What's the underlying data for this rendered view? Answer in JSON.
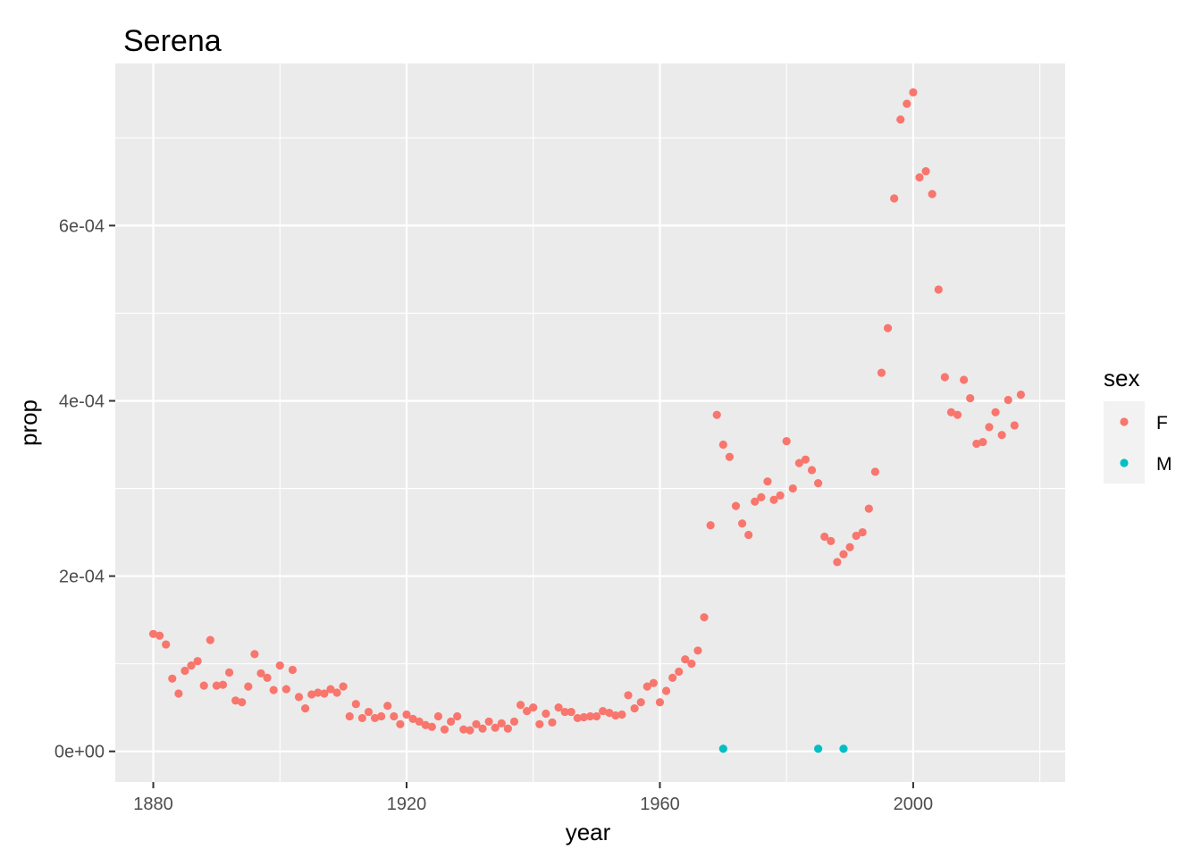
{
  "chart_data": {
    "type": "scatter",
    "title": "Serena",
    "xlabel": "year",
    "ylabel": "prop",
    "xlim": [
      1874,
      2024
    ],
    "ylim": [
      -3.5e-05,
      0.000785
    ],
    "x_ticks": [
      1880,
      1920,
      1960,
      2000
    ],
    "x_tick_labels": [
      "1880",
      "1920",
      "1960",
      "2000"
    ],
    "y_ticks": [
      0,
      0.0002,
      0.0004,
      0.0006
    ],
    "y_tick_labels": [
      "0e+00",
      "2e-04",
      "4e-04",
      "6e-04"
    ],
    "grid": true,
    "legend": {
      "title": "sex",
      "position": "right"
    },
    "series": [
      {
        "name": "F",
        "color": "#F8766D",
        "points": [
          [
            1880,
            0.000134
          ],
          [
            1881,
            0.000132
          ],
          [
            1882,
            0.000122
          ],
          [
            1883,
            8.3e-05
          ],
          [
            1884,
            6.6e-05
          ],
          [
            1885,
            9.2e-05
          ],
          [
            1886,
            9.8e-05
          ],
          [
            1887,
            0.000103
          ],
          [
            1888,
            7.5e-05
          ],
          [
            1889,
            0.000127
          ],
          [
            1890,
            7.5e-05
          ],
          [
            1891,
            7.6e-05
          ],
          [
            1892,
            9e-05
          ],
          [
            1893,
            5.8e-05
          ],
          [
            1894,
            5.6e-05
          ],
          [
            1895,
            7.4e-05
          ],
          [
            1896,
            0.000111
          ],
          [
            1897,
            8.9e-05
          ],
          [
            1898,
            8.4e-05
          ],
          [
            1899,
            7e-05
          ],
          [
            1900,
            9.8e-05
          ],
          [
            1901,
            7.1e-05
          ],
          [
            1902,
            9.3e-05
          ],
          [
            1903,
            6.2e-05
          ],
          [
            1904,
            4.9e-05
          ],
          [
            1905,
            6.5e-05
          ],
          [
            1906,
            6.7e-05
          ],
          [
            1907,
            6.6e-05
          ],
          [
            1908,
            7.1e-05
          ],
          [
            1909,
            6.7e-05
          ],
          [
            1910,
            7.4e-05
          ],
          [
            1911,
            4e-05
          ],
          [
            1912,
            5.4e-05
          ],
          [
            1913,
            3.8e-05
          ],
          [
            1914,
            4.5e-05
          ],
          [
            1915,
            3.8e-05
          ],
          [
            1916,
            4e-05
          ],
          [
            1917,
            5.2e-05
          ],
          [
            1918,
            4e-05
          ],
          [
            1919,
            3.1e-05
          ],
          [
            1920,
            4.2e-05
          ],
          [
            1921,
            3.7e-05
          ],
          [
            1922,
            3.4e-05
          ],
          [
            1923,
            3e-05
          ],
          [
            1924,
            2.8e-05
          ],
          [
            1925,
            4e-05
          ],
          [
            1926,
            2.5e-05
          ],
          [
            1927,
            3.4e-05
          ],
          [
            1928,
            4e-05
          ],
          [
            1929,
            2.5e-05
          ],
          [
            1930,
            2.4e-05
          ],
          [
            1931,
            3.1e-05
          ],
          [
            1932,
            2.6e-05
          ],
          [
            1933,
            3.4e-05
          ],
          [
            1934,
            2.7e-05
          ],
          [
            1935,
            3.2e-05
          ],
          [
            1936,
            2.6e-05
          ],
          [
            1937,
            3.4e-05
          ],
          [
            1938,
            5.3e-05
          ],
          [
            1939,
            4.6e-05
          ],
          [
            1940,
            5e-05
          ],
          [
            1941,
            3.1e-05
          ],
          [
            1942,
            4.3e-05
          ],
          [
            1943,
            3.3e-05
          ],
          [
            1944,
            5e-05
          ],
          [
            1945,
            4.5e-05
          ],
          [
            1946,
            4.5e-05
          ],
          [
            1947,
            3.8e-05
          ],
          [
            1948,
            3.9e-05
          ],
          [
            1949,
            4e-05
          ],
          [
            1950,
            4e-05
          ],
          [
            1951,
            4.6e-05
          ],
          [
            1952,
            4.4e-05
          ],
          [
            1953,
            4.1e-05
          ],
          [
            1954,
            4.2e-05
          ],
          [
            1955,
            6.4e-05
          ],
          [
            1956,
            4.9e-05
          ],
          [
            1957,
            5.6e-05
          ],
          [
            1958,
            7.4e-05
          ],
          [
            1959,
            7.8e-05
          ],
          [
            1960,
            5.6e-05
          ],
          [
            1961,
            6.9e-05
          ],
          [
            1962,
            8.4e-05
          ],
          [
            1963,
            9.1e-05
          ],
          [
            1964,
            0.000105
          ],
          [
            1965,
            0.0001
          ],
          [
            1966,
            0.000115
          ],
          [
            1967,
            0.000153
          ],
          [
            1968,
            0.000258
          ],
          [
            1969,
            0.000384
          ],
          [
            1970,
            0.00035
          ],
          [
            1971,
            0.000336
          ],
          [
            1972,
            0.00028
          ],
          [
            1973,
            0.00026
          ],
          [
            1974,
            0.000247
          ],
          [
            1975,
            0.000285
          ],
          [
            1976,
            0.00029
          ],
          [
            1977,
            0.000308
          ],
          [
            1978,
            0.000287
          ],
          [
            1979,
            0.000292
          ],
          [
            1980,
            0.000354
          ],
          [
            1981,
            0.0003
          ],
          [
            1982,
            0.000329
          ],
          [
            1983,
            0.000333
          ],
          [
            1984,
            0.000321
          ],
          [
            1985,
            0.000306
          ],
          [
            1986,
            0.000245
          ],
          [
            1987,
            0.00024
          ],
          [
            1988,
            0.000216
          ],
          [
            1989,
            0.000225
          ],
          [
            1990,
            0.000233
          ],
          [
            1991,
            0.000246
          ],
          [
            1992,
            0.00025
          ],
          [
            1993,
            0.000277
          ],
          [
            1994,
            0.000319
          ],
          [
            1995,
            0.000432
          ],
          [
            1996,
            0.000483
          ],
          [
            1997,
            0.000631
          ],
          [
            1998,
            0.000721
          ],
          [
            1999,
            0.000739
          ],
          [
            2000,
            0.000752
          ],
          [
            2001,
            0.000655
          ],
          [
            2002,
            0.000662
          ],
          [
            2003,
            0.000636
          ],
          [
            2004,
            0.000527
          ],
          [
            2005,
            0.000427
          ],
          [
            2006,
            0.000387
          ],
          [
            2007,
            0.000384
          ],
          [
            2008,
            0.000424
          ],
          [
            2009,
            0.000403
          ],
          [
            2010,
            0.000351
          ],
          [
            2011,
            0.000353
          ],
          [
            2012,
            0.00037
          ],
          [
            2013,
            0.000387
          ],
          [
            2014,
            0.000361
          ],
          [
            2015,
            0.000401
          ],
          [
            2016,
            0.000372
          ],
          [
            2017,
            0.000407
          ]
        ]
      },
      {
        "name": "M",
        "color": "#00BFC4",
        "points": [
          [
            1970,
            3e-06
          ],
          [
            1985,
            3e-06
          ],
          [
            1989,
            3e-06
          ]
        ]
      }
    ]
  }
}
